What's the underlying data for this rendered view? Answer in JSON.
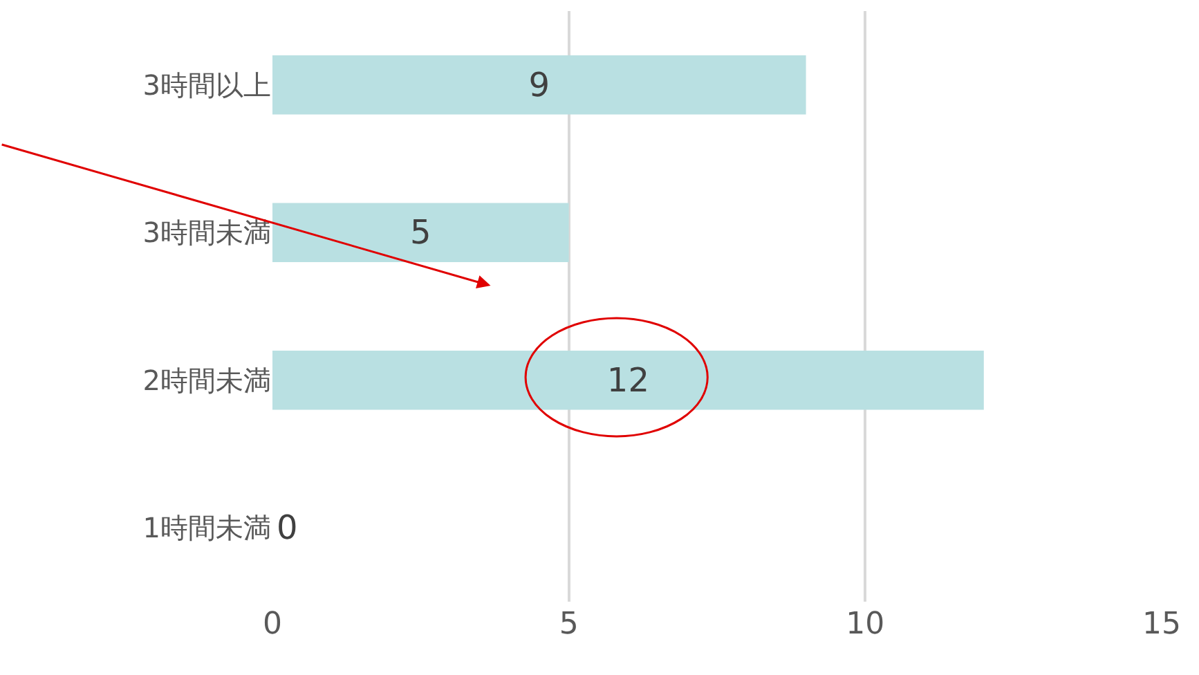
{
  "chart_data": {
    "type": "bar",
    "orientation": "horizontal",
    "categories": [
      "3時間以上",
      "3時間未満",
      "2時間未満",
      "1時間未満"
    ],
    "series": [
      {
        "color": "#b9e0e2",
        "values": [
          9,
          5,
          12,
          0
        ]
      }
    ],
    "xlim": [
      0,
      15
    ],
    "xticks": [
      0,
      5,
      10,
      15
    ],
    "grid": "x",
    "data_labels": true
  }
}
